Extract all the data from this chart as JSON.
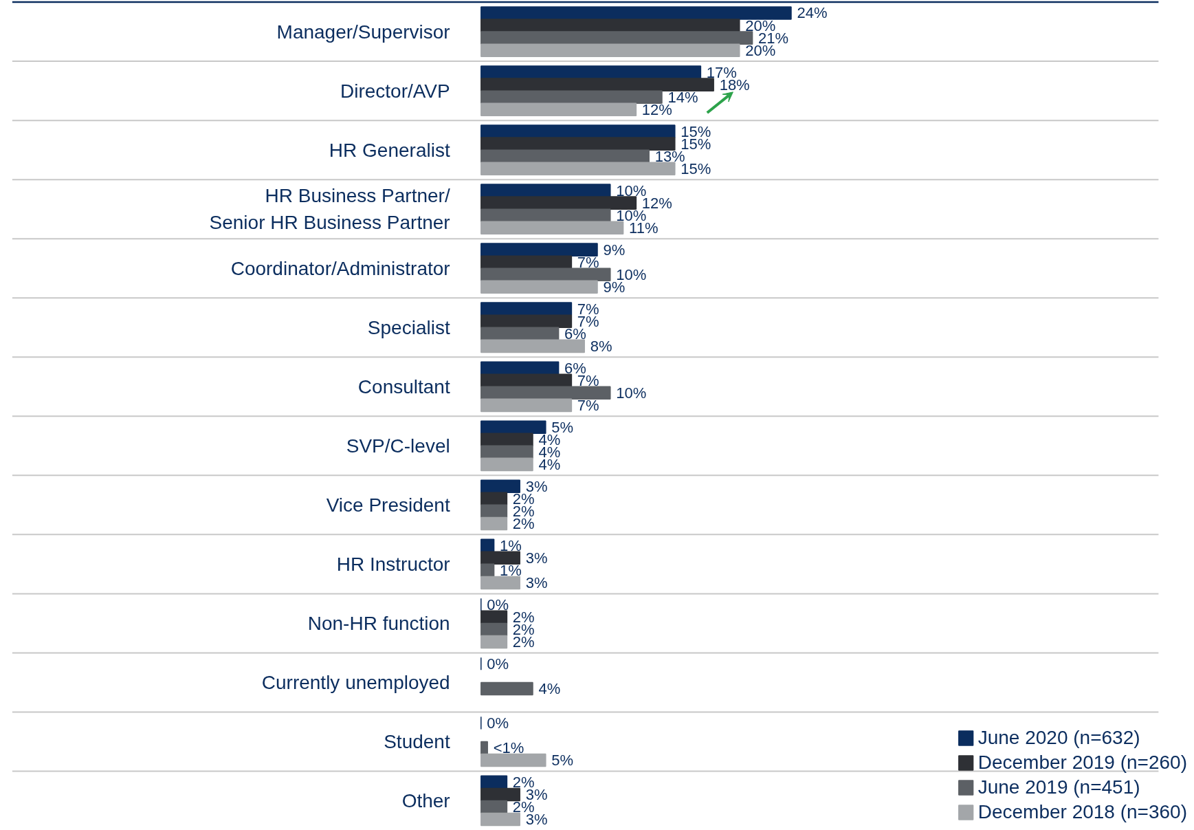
{
  "chart_data": {
    "type": "bar",
    "orientation": "horizontal",
    "categories": [
      "Manager/Supervisor",
      "Director/AVP",
      "HR Generalist",
      "HR Business Partner/ Senior HR Business Partner",
      "Coordinator/Administrator",
      "Specialist",
      "Consultant",
      "SVP/C-level",
      "Vice President",
      "HR Instructor",
      "Non-HR function",
      "Currently unemployed",
      "Student",
      "Other"
    ],
    "series": [
      {
        "name": "June 2020 (n=632)",
        "color": "#0b2d5e",
        "values": [
          24,
          17,
          15,
          10,
          9,
          7,
          6,
          5,
          3,
          1,
          0,
          0,
          0,
          2
        ],
        "value_labels": [
          "24%",
          "17%",
          "15%",
          "10%",
          "9%",
          "7%",
          "6%",
          "5%",
          "3%",
          "1%",
          "0%",
          "0%",
          "0%",
          "2%"
        ]
      },
      {
        "name": "December 2019 (n=260)",
        "color": "#2e3035",
        "values": [
          20,
          18,
          15,
          12,
          7,
          7,
          7,
          4,
          2,
          3,
          2,
          null,
          null,
          3
        ],
        "value_labels": [
          "20%",
          "18%",
          "15%",
          "12%",
          "7%",
          "7%",
          "7%",
          "4%",
          "2%",
          "3%",
          "2%",
          null,
          null,
          "3%"
        ]
      },
      {
        "name": "June 2019 (n=451)",
        "color": "#5c6065",
        "values": [
          21,
          14,
          13,
          10,
          10,
          6,
          10,
          4,
          2,
          1,
          2,
          4,
          0.5,
          2
        ],
        "value_labels": [
          "21%",
          "14%",
          "13%",
          "10%",
          "10%",
          "6%",
          "10%",
          "4%",
          "2%",
          "1%",
          "2%",
          "4%",
          "<1%",
          "2%"
        ]
      },
      {
        "name": "December 2018 (n=360)",
        "color": "#a3a6a9",
        "values": [
          20,
          12,
          15,
          11,
          9,
          8,
          7,
          4,
          2,
          3,
          2,
          null,
          5,
          3
        ],
        "value_labels": [
          "20%",
          "12%",
          "15%",
          "11%",
          "9%",
          "8%",
          "7%",
          "4%",
          "2%",
          "3%",
          "2%",
          null,
          "5%",
          "3%"
        ]
      }
    ],
    "grid": "y",
    "legend": "bottom right"
  }
}
